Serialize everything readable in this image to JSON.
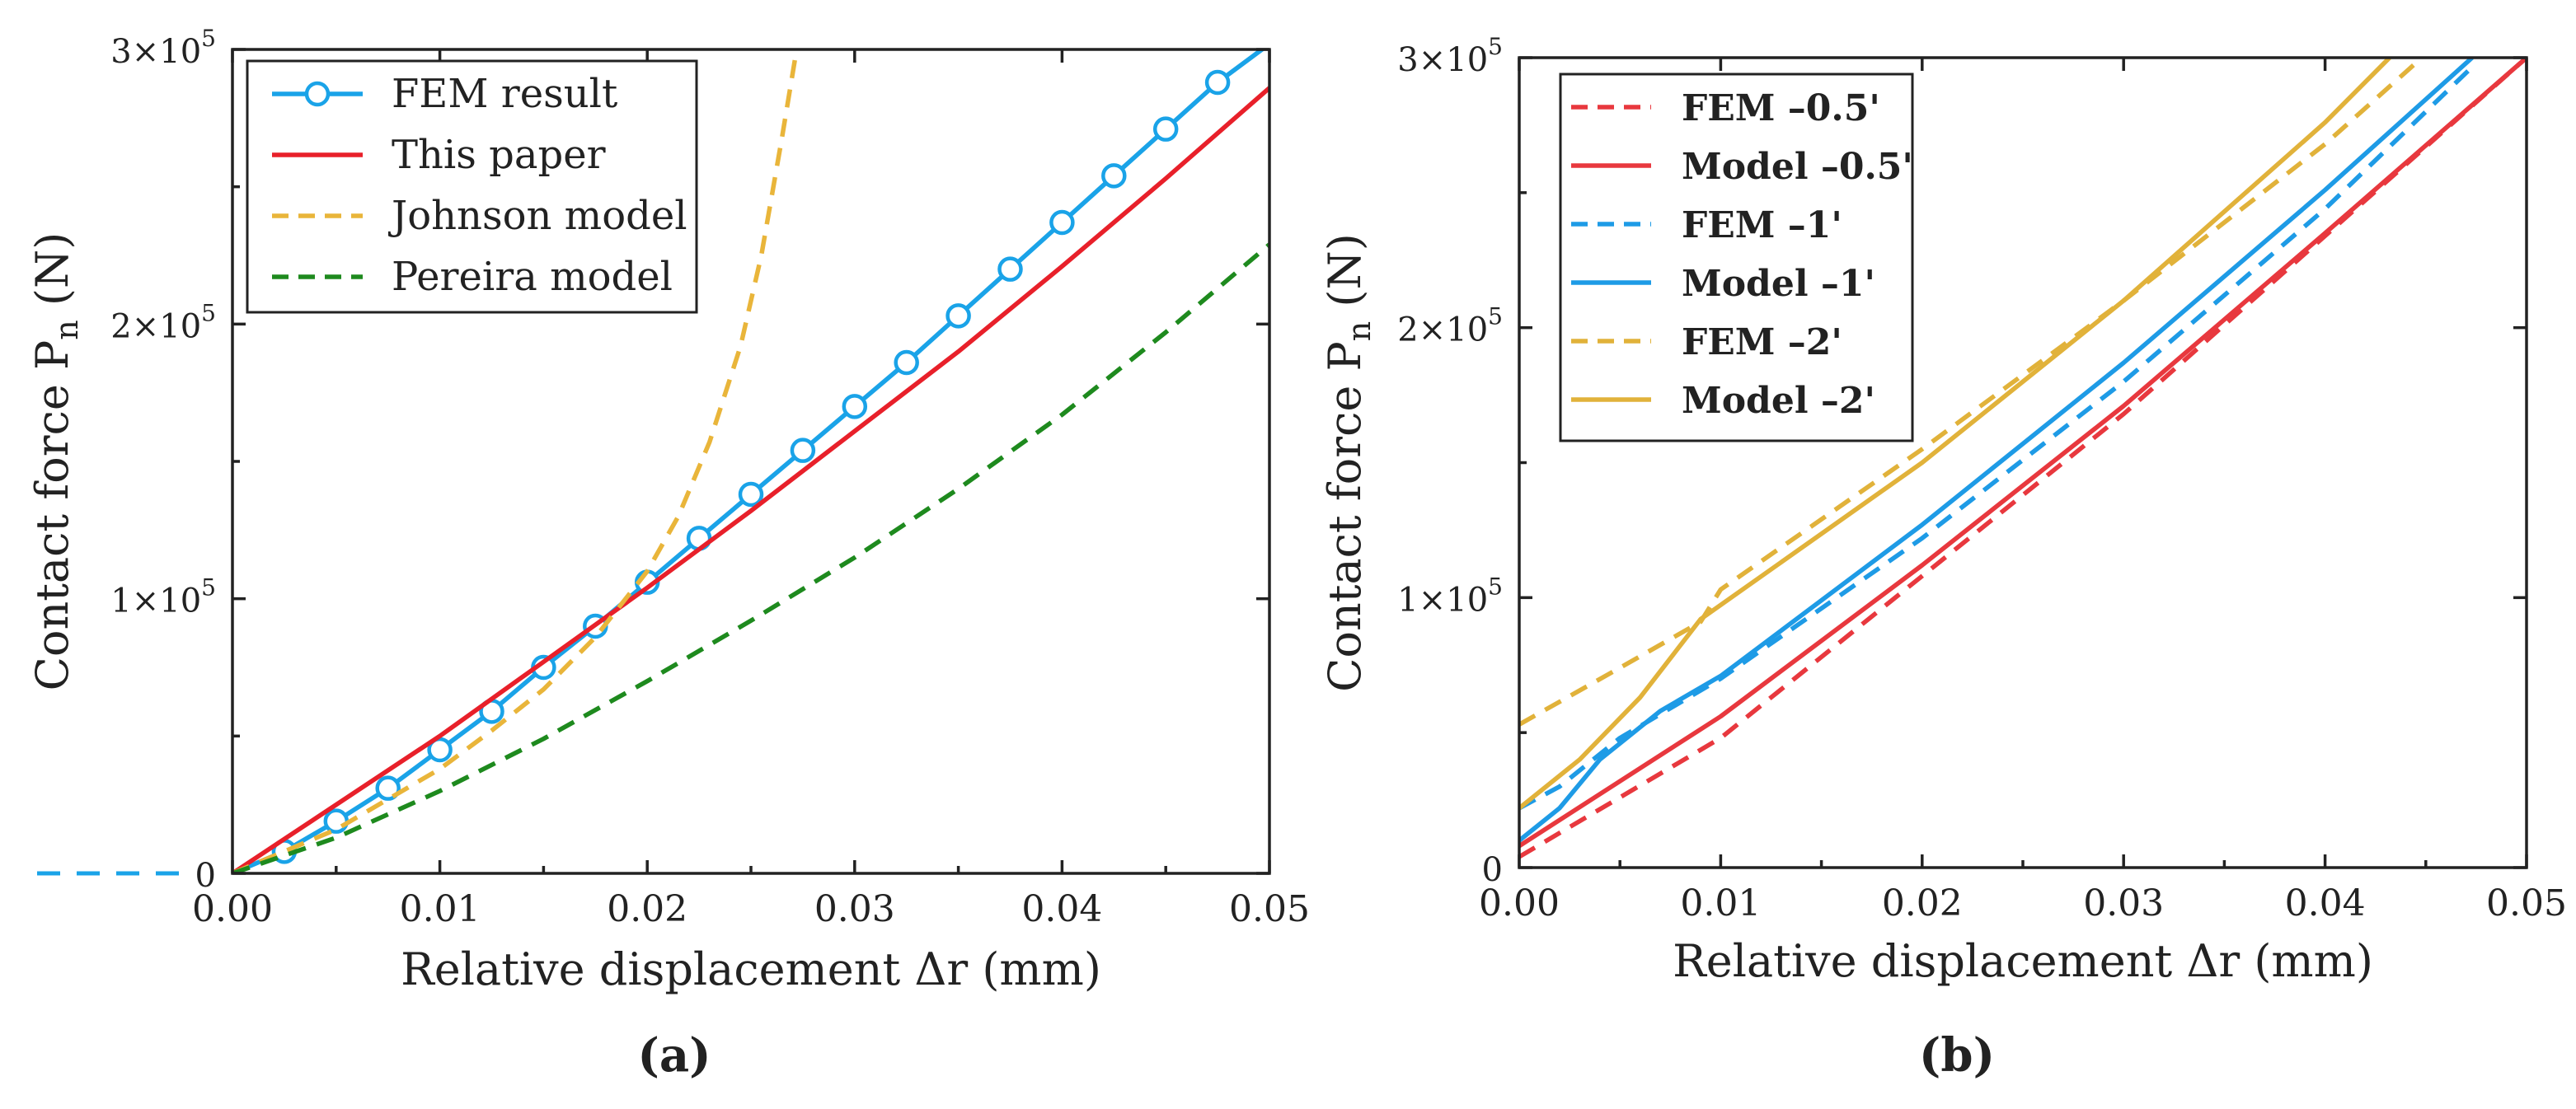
{
  "chart_data": [
    {
      "panel": "(a)",
      "type": "line",
      "xlabel": "Relative displacement Δr (mm)",
      "ylabel": "Contact force P",
      "ylabel_sub": "n",
      "ylabel_unit": "(N)",
      "xlim": [
        0,
        0.05
      ],
      "ylim": [
        0,
        300000
      ],
      "xticks": [
        0,
        0.01,
        0.02,
        0.03,
        0.04,
        0.05
      ],
      "xtick_labels": [
        "0.00",
        "0.01",
        "0.02",
        "0.03",
        "0.04",
        "0.05"
      ],
      "yticks": [
        0,
        100000,
        200000,
        300000
      ],
      "ytick_labels": [
        {
          "m": "0",
          "e": ""
        },
        {
          "m": "1×10",
          "e": "5"
        },
        {
          "m": "2×10",
          "e": "5"
        },
        {
          "m": "3×10",
          "e": "5"
        }
      ],
      "legend_position": "top-left",
      "series": [
        {
          "name": "FEM result",
          "color": "#1aa3e8",
          "dash": "solid",
          "marker": "circle",
          "x": [
            0,
            0.0025,
            0.005,
            0.0075,
            0.01,
            0.0125,
            0.015,
            0.0175,
            0.02,
            0.0225,
            0.025,
            0.0275,
            0.03,
            0.0325,
            0.035,
            0.0375,
            0.04,
            0.0425,
            0.045,
            0.0475,
            0.05
          ],
          "y": [
            0,
            8000,
            19000,
            31000,
            45000,
            59000,
            75000,
            90000,
            106000,
            122000,
            138000,
            154000,
            170000,
            186000,
            203000,
            220000,
            237000,
            254000,
            271000,
            288000,
            302000
          ],
          "marker_x": [
            0.0025,
            0.005,
            0.0075,
            0.01,
            0.0125,
            0.015,
            0.0175,
            0.02,
            0.0225,
            0.025,
            0.0275,
            0.03,
            0.0325,
            0.035,
            0.0375,
            0.04,
            0.0425,
            0.045,
            0.0475
          ]
        },
        {
          "name": "This paper",
          "color": "#e8202a",
          "dash": "solid",
          "x": [
            0,
            0.005,
            0.01,
            0.015,
            0.02,
            0.025,
            0.03,
            0.035,
            0.04,
            0.045,
            0.05
          ],
          "y": [
            0,
            25000,
            50000,
            77000,
            104000,
            132000,
            161000,
            190000,
            221000,
            253000,
            286000
          ]
        },
        {
          "name": "Johnson model",
          "color": "#e9b53a",
          "dash": "dashed",
          "x": [
            0,
            0.005,
            0.01,
            0.0125,
            0.015,
            0.0175,
            0.02,
            0.0215,
            0.023,
            0.0245,
            0.0255,
            0.0265,
            0.0272
          ],
          "y": [
            0,
            16000,
            38000,
            52000,
            67000,
            86000,
            110000,
            130000,
            157000,
            192000,
            225000,
            268000,
            300000
          ]
        },
        {
          "name": "Pereira model",
          "color": "#1e8a1e",
          "dash": "dashed",
          "x": [
            0,
            0.005,
            0.01,
            0.015,
            0.02,
            0.025,
            0.03,
            0.035,
            0.04,
            0.045,
            0.05
          ],
          "y": [
            0,
            13000,
            30000,
            49000,
            70000,
            92000,
            115000,
            140000,
            167000,
            197000,
            229000
          ]
        }
      ]
    },
    {
      "panel": "(b)",
      "type": "line",
      "xlabel": "Relative displacement Δr (mm)",
      "ylabel": "Contact force P",
      "ylabel_sub": "n",
      "ylabel_unit": "(N)",
      "xlim": [
        0,
        0.05
      ],
      "ylim": [
        0,
        300000
      ],
      "xticks": [
        0,
        0.01,
        0.02,
        0.03,
        0.04,
        0.05
      ],
      "xtick_labels": [
        "0.00",
        "0.01",
        "0.02",
        "0.03",
        "0.04",
        "0.05"
      ],
      "yticks": [
        0,
        100000,
        200000,
        300000
      ],
      "ytick_labels": [
        {
          "m": "0",
          "e": ""
        },
        {
          "m": "1×10",
          "e": "5"
        },
        {
          "m": "2×10",
          "e": "5"
        },
        {
          "m": "3×10",
          "e": "5"
        }
      ],
      "legend_position": "top-left",
      "series": [
        {
          "name": "FEM  –0.5'",
          "color": "#e8383e",
          "dash": "dashed",
          "x": [
            0,
            0.01,
            0.02,
            0.03,
            0.04,
            0.05
          ],
          "y": [
            4000,
            48000,
            108000,
            168000,
            234000,
            300000
          ]
        },
        {
          "name": "Model –0.5'",
          "color": "#e8383e",
          "dash": "solid",
          "x": [
            0,
            0.01,
            0.02,
            0.03,
            0.04,
            0.05
          ],
          "y": [
            8000,
            56000,
            112000,
            171000,
            235000,
            300000
          ]
        },
        {
          "name": "FEM  –1'",
          "color": "#1e9be6",
          "dash": "dashed",
          "x": [
            0,
            0.002,
            0.005,
            0.01,
            0.02,
            0.03,
            0.04,
            0.0475
          ],
          "y": [
            22000,
            30000,
            48000,
            70000,
            122000,
            180000,
            244000,
            298000
          ]
        },
        {
          "name": "Model –1'",
          "color": "#1e9be6",
          "dash": "solid",
          "x": [
            0,
            0.002,
            0.004,
            0.007,
            0.01,
            0.02,
            0.03,
            0.04,
            0.0473
          ],
          "y": [
            10000,
            22000,
            40000,
            58000,
            71000,
            127000,
            187000,
            251000,
            300000
          ]
        },
        {
          "name": "FEM  –2'",
          "color": "#e1b23a",
          "dash": "dashed",
          "x": [
            0,
            0.005,
            0.009,
            0.01,
            0.02,
            0.03,
            0.04,
            0.0445
          ],
          "y": [
            53000,
            74000,
            91000,
            103000,
            155000,
            210000,
            268000,
            298000
          ]
        },
        {
          "name": "Model –2'",
          "color": "#e1b23a",
          "dash": "solid",
          "x": [
            0,
            0.003,
            0.006,
            0.009,
            0.02,
            0.03,
            0.04,
            0.0432
          ],
          "y": [
            22000,
            40000,
            63000,
            92000,
            150000,
            210000,
            276000,
            300000
          ]
        }
      ]
    }
  ],
  "panel_labels": [
    "(a)",
    "(b)"
  ],
  "axis_break_legend_line": {
    "color": "#1aa3e8",
    "label": ""
  }
}
